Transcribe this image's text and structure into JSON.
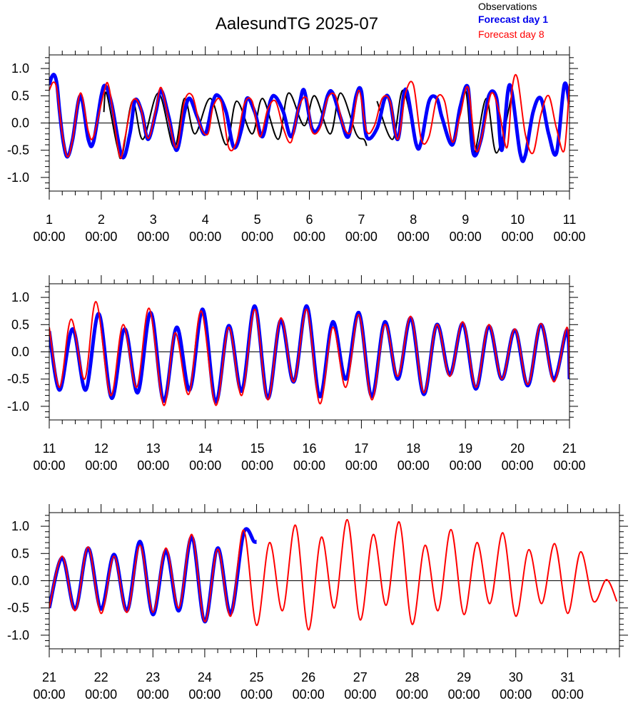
{
  "title": "AalesundTG 2025-07",
  "legend": {
    "observations": "Observations",
    "forecast_day1": "Forecast day 1",
    "forecast_day8": "Forecast day 8"
  },
  "colors": {
    "observations": "#000000",
    "forecast_day1": "#0000ff",
    "forecast_day8": "#ff0000"
  },
  "chart_data": [
    {
      "type": "line",
      "x_range": [
        1,
        11
      ],
      "ylim": [
        -1.25,
        1.25
      ],
      "y_ticks": [
        -1.0,
        -0.5,
        0.0,
        0.5,
        1.0
      ],
      "y_tick_labels": [
        "-1.0",
        "-0.5",
        "0.0",
        "0.5",
        "1.0"
      ],
      "x_ticks": [
        1,
        2,
        3,
        4,
        5,
        6,
        7,
        8,
        9,
        10,
        11
      ],
      "x_tick_labels_day": [
        "1",
        "2",
        "3",
        "4",
        "5",
        "6",
        "7",
        "8",
        "9",
        "10",
        "11"
      ],
      "x_tick_labels_time": [
        "00:00",
        "00:00",
        "00:00",
        "00:00",
        "00:00",
        "00:00",
        "00:00",
        "00:00",
        "00:00",
        "00:00",
        "00:00"
      ],
      "series": [
        {
          "name": "Observations",
          "x": [
            2.05,
            2.1,
            2.3,
            2.4,
            2.6,
            2.8,
            3.1,
            3.4,
            3.6,
            3.8,
            4.1,
            4.4,
            4.6,
            4.9,
            5.1,
            5.4,
            5.6,
            5.9,
            6.1,
            6.4,
            6.6,
            6.9,
            7.05,
            7.1
          ],
          "values": [
            0.2,
            0.55,
            -0.4,
            -0.6,
            0.4,
            -0.3,
            0.55,
            -0.45,
            0.45,
            -0.2,
            0.45,
            -0.4,
            0.4,
            -0.2,
            0.45,
            -0.3,
            0.55,
            -0.05,
            0.5,
            -0.2,
            0.55,
            -0.2,
            -0.3,
            -0.42
          ]
        },
        {
          "name": "Observations",
          "x": [
            7.3,
            7.6,
            7.8,
            8.05
          ],
          "values": [
            0.4,
            -0.3,
            0.6,
            -0.42
          ]
        },
        {
          "name": "Observations",
          "x": [
            8.8,
            9.0,
            9.15,
            9.4,
            9.6,
            9.9
          ],
          "values": [
            -0.3,
            0.6,
            -0.6,
            0.45,
            -0.55,
            0.55
          ]
        },
        {
          "name": "Forecast day 1",
          "x": [
            1.0,
            1.05,
            1.1,
            1.15,
            1.2,
            1.27,
            1.35,
            1.45,
            1.6,
            1.75,
            1.85,
            2.0,
            2.08,
            2.2,
            2.4,
            2.55,
            2.65,
            2.78,
            2.9,
            3.05,
            3.15,
            3.3,
            3.45,
            3.6,
            3.7,
            3.85,
            4.0,
            4.15,
            4.25,
            4.4,
            4.55,
            4.7,
            4.8,
            4.95,
            5.1,
            5.25,
            5.35,
            5.5,
            5.65,
            5.8,
            5.9,
            6.05,
            6.2,
            6.35,
            6.45,
            6.6,
            6.75,
            6.9,
            7.0,
            7.1,
            7.3,
            7.45,
            7.55,
            7.7,
            7.85,
            8.05,
            8.15,
            8.3,
            8.45,
            8.55,
            8.75,
            8.9,
            9.05,
            9.15,
            9.3,
            9.45,
            9.6,
            9.7,
            9.85,
            10.05,
            10.15,
            10.3,
            10.45,
            10.6,
            10.75,
            10.9,
            11.0
          ],
          "values": [
            0.7,
            0.85,
            0.88,
            0.7,
            0.2,
            -0.35,
            -0.62,
            -0.3,
            0.5,
            -0.3,
            -0.35,
            0.5,
            0.68,
            0.35,
            -0.62,
            -0.2,
            0.42,
            0.2,
            -0.3,
            0.2,
            0.6,
            0.1,
            -0.5,
            0.2,
            0.45,
            0.1,
            -0.2,
            0.4,
            0.5,
            0.2,
            -0.45,
            -0.1,
            0.45,
            0.2,
            -0.25,
            0.4,
            0.48,
            0.2,
            -0.25,
            0.3,
            0.6,
            -0.1,
            -0.05,
            0.5,
            0.55,
            0.1,
            -0.25,
            0.5,
            0.58,
            -0.25,
            -0.1,
            0.45,
            0.4,
            -0.3,
            0.62,
            -0.38,
            -0.35,
            0.4,
            0.45,
            0.1,
            -0.4,
            0.3,
            0.65,
            -0.55,
            -0.3,
            0.5,
            0.45,
            -0.5,
            0.7,
            -0.55,
            -0.6,
            0.2,
            0.45,
            -0.2,
            -0.55,
            0.7,
            0.35
          ]
        },
        {
          "name": "Forecast day 8",
          "x": [
            1.0,
            1.08,
            1.15,
            1.25,
            1.35,
            1.45,
            1.6,
            1.75,
            1.85,
            2.05,
            2.15,
            2.35,
            2.45,
            2.6,
            2.75,
            2.9,
            3.05,
            3.15,
            3.3,
            3.45,
            3.6,
            3.75,
            3.9,
            4.05,
            4.15,
            4.3,
            4.45,
            4.6,
            4.75,
            4.9,
            5.05,
            5.2,
            5.35,
            5.5,
            5.65,
            5.8,
            5.95,
            6.05,
            6.2,
            6.35,
            6.5,
            6.65,
            6.8,
            6.95,
            7.1,
            7.25,
            7.4,
            7.55,
            7.7,
            7.85,
            8.0,
            8.15,
            8.3,
            8.45,
            8.6,
            8.75,
            8.9,
            9.05,
            9.2,
            9.35,
            9.5,
            9.65,
            9.8,
            9.9,
            10.0,
            10.15,
            10.3,
            10.45,
            10.6,
            10.75,
            10.9,
            11.0
          ],
          "values": [
            0.6,
            0.75,
            0.6,
            -0.2,
            -0.62,
            -0.3,
            0.55,
            -0.15,
            -0.25,
            0.55,
            0.65,
            -0.6,
            -0.3,
            0.4,
            0.3,
            -0.28,
            0.25,
            0.65,
            0.05,
            -0.45,
            0.4,
            0.5,
            -0.05,
            -0.2,
            0.3,
            0.4,
            -0.45,
            -0.35,
            0.35,
            0.4,
            -0.25,
            0.25,
            0.4,
            -0.1,
            -0.35,
            0.3,
            0.45,
            -0.15,
            -0.1,
            0.45,
            0.5,
            -0.05,
            -0.15,
            0.6,
            -0.15,
            -0.05,
            0.45,
            0.4,
            -0.3,
            0.55,
            0.7,
            -0.3,
            -0.25,
            0.45,
            0.4,
            -0.35,
            0.15,
            0.65,
            -0.5,
            -0.1,
            0.55,
            0.2,
            -0.45,
            0.65,
            0.82,
            -0.2,
            -0.55,
            0.15,
            0.5,
            -0.1,
            -0.5,
            0.72
          ]
        }
      ]
    },
    {
      "type": "line",
      "x_range": [
        11,
        21
      ],
      "ylim": [
        -1.25,
        1.25
      ],
      "y_ticks": [
        -1.0,
        -0.5,
        0.0,
        0.5,
        1.0
      ],
      "y_tick_labels": [
        "-1.0",
        "-0.5",
        "0.0",
        "0.5",
        "1.0"
      ],
      "x_ticks": [
        11,
        12,
        13,
        14,
        15,
        16,
        17,
        18,
        19,
        20,
        21
      ],
      "x_tick_labels_day": [
        "11",
        "12",
        "13",
        "14",
        "15",
        "16",
        "17",
        "18",
        "19",
        "20",
        "21"
      ],
      "x_tick_labels_time": [
        "00:00",
        "00:00",
        "00:00",
        "00:00",
        "00:00",
        "00:00",
        "00:00",
        "00:00",
        "00:00",
        "00:00",
        "00:00"
      ],
      "series": [
        {
          "name": "Forecast day 1",
          "x": [
            11.0,
            11.2,
            11.45,
            11.7,
            11.95,
            12.2,
            12.45,
            12.7,
            12.95,
            13.2,
            13.45,
            13.7,
            13.95,
            14.2,
            14.45,
            14.7,
            14.95,
            15.2,
            15.45,
            15.7,
            15.95,
            16.2,
            16.45,
            16.7,
            16.95,
            17.2,
            17.45,
            17.7,
            17.95,
            18.2,
            18.45,
            18.7,
            18.95,
            19.2,
            19.45,
            19.7,
            19.95,
            20.2,
            20.45,
            20.7,
            20.95,
            21.0
          ],
          "values": [
            0.38,
            -0.7,
            0.42,
            -0.7,
            0.7,
            -0.85,
            0.42,
            -0.75,
            0.72,
            -0.9,
            0.45,
            -0.7,
            0.78,
            -0.92,
            0.48,
            -0.72,
            0.84,
            -0.85,
            0.58,
            -0.55,
            0.84,
            -0.82,
            0.55,
            -0.5,
            0.72,
            -0.82,
            0.55,
            -0.5,
            0.62,
            -0.78,
            0.5,
            -0.42,
            0.52,
            -0.68,
            0.47,
            -0.5,
            0.4,
            -0.62,
            0.5,
            -0.5,
            0.4,
            -0.5
          ]
        },
        {
          "name": "Forecast day 8",
          "x": [
            11.0,
            11.2,
            11.42,
            11.68,
            11.9,
            12.18,
            12.42,
            12.68,
            12.92,
            13.2,
            13.42,
            13.68,
            13.92,
            14.2,
            14.45,
            14.7,
            14.95,
            15.2,
            15.45,
            15.7,
            15.95,
            16.2,
            16.45,
            16.7,
            16.95,
            17.2,
            17.45,
            17.7,
            17.95,
            18.2,
            18.45,
            18.7,
            18.95,
            19.2,
            19.45,
            19.7,
            19.95,
            20.2,
            20.45,
            20.7,
            20.95,
            21.0
          ],
          "values": [
            0.45,
            -0.65,
            0.6,
            -0.5,
            0.92,
            -0.8,
            0.5,
            -0.65,
            0.8,
            -0.98,
            0.35,
            -0.78,
            0.75,
            -0.98,
            0.45,
            -0.8,
            0.78,
            -0.88,
            0.62,
            -0.55,
            0.78,
            -0.95,
            0.45,
            -0.65,
            0.68,
            -0.88,
            0.5,
            -0.45,
            0.65,
            -0.75,
            0.5,
            -0.45,
            0.55,
            -0.65,
            0.5,
            -0.5,
            0.42,
            -0.6,
            0.52,
            -0.55,
            0.45,
            -0.48
          ]
        }
      ]
    },
    {
      "type": "line",
      "x_range": [
        21,
        32
      ],
      "ylim": [
        -1.25,
        1.25
      ],
      "y_ticks": [
        -1.0,
        -0.5,
        0.0,
        0.5,
        1.0
      ],
      "y_tick_labels": [
        "-1.0",
        "-0.5",
        "0.0",
        "0.5",
        "1.0"
      ],
      "x_ticks": [
        21,
        22,
        23,
        24,
        25,
        26,
        27,
        28,
        29,
        30,
        31
      ],
      "x_tick_labels_day": [
        "21",
        "22",
        "23",
        "24",
        "25",
        "26",
        "27",
        "28",
        "29",
        "30",
        "31"
      ],
      "x_tick_labels_time": [
        "00:00",
        "00:00",
        "00:00",
        "00:00",
        "00:00",
        "00:00",
        "00:00",
        "00:00",
        "00:00",
        "00:00",
        "00:00"
      ],
      "series": [
        {
          "name": "Forecast day 1",
          "x": [
            21.0,
            21.25,
            21.5,
            21.75,
            22.0,
            22.25,
            22.5,
            22.75,
            23.0,
            23.25,
            23.5,
            23.75,
            24.0,
            24.25,
            24.5,
            24.75,
            24.95,
            25.0
          ],
          "values": [
            -0.5,
            0.42,
            -0.52,
            0.6,
            -0.52,
            0.48,
            -0.55,
            0.72,
            -0.62,
            0.55,
            -0.55,
            0.8,
            -0.75,
            0.6,
            -0.6,
            0.88,
            0.72,
            0.72
          ]
        },
        {
          "name": "Forecast day 8",
          "x": [
            21.0,
            21.25,
            21.5,
            21.75,
            22.0,
            22.25,
            22.5,
            22.75,
            23.0,
            23.25,
            23.5,
            23.75,
            24.0,
            24.25,
            24.5,
            24.75,
            25.0,
            25.25,
            25.5,
            25.75,
            26.0,
            26.25,
            26.5,
            26.75,
            27.0,
            27.25,
            27.5,
            27.75,
            28.0,
            28.25,
            28.5,
            28.75,
            29.0,
            29.25,
            29.5,
            29.75,
            30.0,
            30.25,
            30.5,
            30.75,
            31.0,
            31.25,
            31.5,
            31.75,
            31.95
          ],
          "values": [
            -0.5,
            0.45,
            -0.55,
            0.62,
            -0.6,
            0.45,
            -0.58,
            0.65,
            -0.58,
            0.6,
            -0.5,
            0.85,
            -0.75,
            0.58,
            -0.65,
            0.93,
            -0.82,
            0.7,
            -0.55,
            1.02,
            -0.9,
            0.8,
            -0.5,
            1.12,
            -0.72,
            0.85,
            -0.45,
            1.08,
            -0.8,
            0.65,
            -0.55,
            0.94,
            -0.62,
            0.7,
            -0.42,
            0.88,
            -0.65,
            0.57,
            -0.42,
            0.68,
            -0.6,
            0.53,
            -0.38,
            0.02,
            -0.38
          ]
        }
      ]
    }
  ]
}
